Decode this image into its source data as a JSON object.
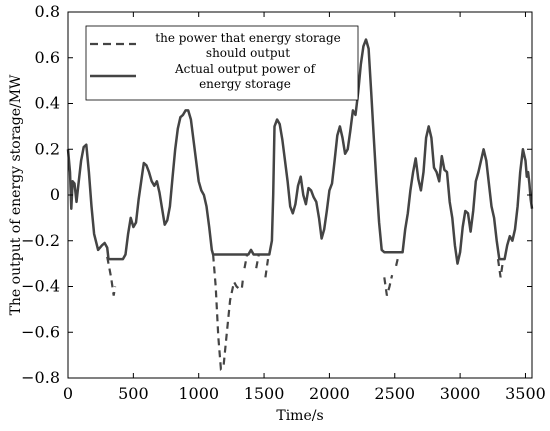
{
  "chart_data": {
    "type": "line",
    "xlabel": "Time/s",
    "ylabel": "The output of energy storage/MW",
    "xlim": [
      0,
      3550
    ],
    "ylim": [
      -0.8,
      0.8
    ],
    "xticks": [
      0,
      500,
      1000,
      1500,
      2000,
      2500,
      3000,
      3500
    ],
    "yticks": [
      0.8,
      0.6,
      0.4,
      0.2,
      0.0,
      -0.2,
      -0.4,
      -0.6,
      -0.8
    ],
    "yticklabels": [
      "0.8",
      "0.6",
      "0.4",
      "0.2",
      "0",
      "−0.2",
      "−0.4",
      "−0.6",
      "−0.8"
    ],
    "grid": false,
    "legend": "top-left",
    "series": [
      {
        "name": "the power that energy storage should output",
        "style": "dashed",
        "color": "#444444",
        "segments": [
          [
            [
              300,
              -0.27
            ],
            [
              330,
              -0.36
            ],
            [
              350,
              -0.44
            ],
            [
              360,
              -0.4
            ]
          ],
          [
            [
              1110,
              -0.26
            ],
            [
              1130,
              -0.4
            ],
            [
              1150,
              -0.62
            ],
            [
              1170,
              -0.76
            ],
            [
              1190,
              -0.75
            ],
            [
              1210,
              -0.63
            ],
            [
              1240,
              -0.46
            ],
            [
              1270,
              -0.38
            ],
            [
              1290,
              -0.4
            ],
            [
              1310,
              -0.41
            ],
            [
              1330,
              -0.41
            ],
            [
              1340,
              -0.36
            ]
          ],
          [
            [
              1350,
              -0.32
            ],
            [
              1370,
              -0.26
            ]
          ],
          [
            [
              1440,
              -0.32
            ],
            [
              1460,
              -0.26
            ]
          ],
          [
            [
              1510,
              -0.36
            ],
            [
              1530,
              -0.28
            ]
          ],
          [
            [
              2420,
              -0.36
            ],
            [
              2440,
              -0.44
            ],
            [
              2460,
              -0.4
            ],
            [
              2480,
              -0.35
            ]
          ],
          [
            [
              2510,
              -0.31
            ],
            [
              2530,
              -0.26
            ]
          ],
          [
            [
              3290,
              -0.28
            ],
            [
              3310,
              -0.36
            ],
            [
              3325,
              -0.3
            ]
          ]
        ]
      },
      {
        "name": "Actual output power of energy storage",
        "style": "solid",
        "color": "#444444",
        "points": [
          [
            0,
            0.2
          ],
          [
            15,
            0.1
          ],
          [
            25,
            -0.06
          ],
          [
            35,
            0.06
          ],
          [
            50,
            0.05
          ],
          [
            65,
            -0.03
          ],
          [
            80,
            0.05
          ],
          [
            100,
            0.15
          ],
          [
            120,
            0.21
          ],
          [
            140,
            0.22
          ],
          [
            160,
            0.1
          ],
          [
            180,
            -0.05
          ],
          [
            200,
            -0.17
          ],
          [
            230,
            -0.24
          ],
          [
            260,
            -0.22
          ],
          [
            280,
            -0.21
          ],
          [
            300,
            -0.23
          ],
          [
            310,
            -0.28
          ],
          [
            330,
            -0.28
          ],
          [
            360,
            -0.28
          ],
          [
            390,
            -0.28
          ],
          [
            420,
            -0.28
          ],
          [
            440,
            -0.26
          ],
          [
            460,
            -0.17
          ],
          [
            480,
            -0.1
          ],
          [
            500,
            -0.14
          ],
          [
            520,
            -0.12
          ],
          [
            540,
            -0.02
          ],
          [
            560,
            0.06
          ],
          [
            580,
            0.14
          ],
          [
            600,
            0.13
          ],
          [
            620,
            0.1
          ],
          [
            640,
            0.06
          ],
          [
            660,
            0.04
          ],
          [
            680,
            0.06
          ],
          [
            700,
            0.01
          ],
          [
            720,
            -0.06
          ],
          [
            740,
            -0.13
          ],
          [
            760,
            -0.11
          ],
          [
            780,
            -0.05
          ],
          [
            800,
            0.08
          ],
          [
            820,
            0.2
          ],
          [
            840,
            0.29
          ],
          [
            860,
            0.34
          ],
          [
            880,
            0.35
          ],
          [
            900,
            0.37
          ],
          [
            920,
            0.37
          ],
          [
            940,
            0.33
          ],
          [
            960,
            0.24
          ],
          [
            980,
            0.15
          ],
          [
            1000,
            0.06
          ],
          [
            1020,
            0.02
          ],
          [
            1040,
            0.0
          ],
          [
            1060,
            -0.05
          ],
          [
            1080,
            -0.14
          ],
          [
            1100,
            -0.24
          ],
          [
            1110,
            -0.26
          ],
          [
            1150,
            -0.26
          ],
          [
            1200,
            -0.26
          ],
          [
            1250,
            -0.26
          ],
          [
            1300,
            -0.26
          ],
          [
            1350,
            -0.26
          ],
          [
            1380,
            -0.26
          ],
          [
            1400,
            -0.24
          ],
          [
            1420,
            -0.26
          ],
          [
            1460,
            -0.26
          ],
          [
            1500,
            -0.26
          ],
          [
            1540,
            -0.26
          ],
          [
            1560,
            -0.2
          ],
          [
            1570,
            0.0
          ],
          [
            1580,
            0.3
          ],
          [
            1600,
            0.33
          ],
          [
            1620,
            0.31
          ],
          [
            1640,
            0.24
          ],
          [
            1660,
            0.15
          ],
          [
            1680,
            0.06
          ],
          [
            1700,
            -0.05
          ],
          [
            1720,
            -0.08
          ],
          [
            1740,
            -0.04
          ],
          [
            1760,
            0.04
          ],
          [
            1780,
            0.08
          ],
          [
            1800,
            0.0
          ],
          [
            1820,
            -0.04
          ],
          [
            1840,
            0.03
          ],
          [
            1860,
            0.02
          ],
          [
            1880,
            -0.01
          ],
          [
            1900,
            -0.03
          ],
          [
            1920,
            -0.1
          ],
          [
            1940,
            -0.19
          ],
          [
            1960,
            -0.15
          ],
          [
            1980,
            -0.07
          ],
          [
            2000,
            0.02
          ],
          [
            2020,
            0.05
          ],
          [
            2040,
            0.15
          ],
          [
            2060,
            0.26
          ],
          [
            2080,
            0.3
          ],
          [
            2100,
            0.25
          ],
          [
            2120,
            0.18
          ],
          [
            2140,
            0.2
          ],
          [
            2160,
            0.28
          ],
          [
            2180,
            0.37
          ],
          [
            2200,
            0.35
          ],
          [
            2220,
            0.45
          ],
          [
            2240,
            0.57
          ],
          [
            2260,
            0.65
          ],
          [
            2280,
            0.68
          ],
          [
            2300,
            0.64
          ],
          [
            2320,
            0.45
          ],
          [
            2340,
            0.25
          ],
          [
            2360,
            0.05
          ],
          [
            2380,
            -0.12
          ],
          [
            2400,
            -0.24
          ],
          [
            2420,
            -0.25
          ],
          [
            2480,
            -0.25
          ],
          [
            2520,
            -0.25
          ],
          [
            2560,
            -0.25
          ],
          [
            2580,
            -0.15
          ],
          [
            2600,
            -0.08
          ],
          [
            2620,
            0.02
          ],
          [
            2640,
            0.1
          ],
          [
            2660,
            0.16
          ],
          [
            2680,
            0.07
          ],
          [
            2700,
            0.02
          ],
          [
            2720,
            0.1
          ],
          [
            2740,
            0.25
          ],
          [
            2760,
            0.3
          ],
          [
            2780,
            0.25
          ],
          [
            2800,
            0.12
          ],
          [
            2820,
            0.1
          ],
          [
            2840,
            0.06
          ],
          [
            2860,
            0.17
          ],
          [
            2880,
            0.11
          ],
          [
            2900,
            0.1
          ],
          [
            2920,
            -0.03
          ],
          [
            2940,
            -0.1
          ],
          [
            2960,
            -0.22
          ],
          [
            2980,
            -0.3
          ],
          [
            3000,
            -0.25
          ],
          [
            3020,
            -0.14
          ],
          [
            3040,
            -0.07
          ],
          [
            3060,
            -0.08
          ],
          [
            3080,
            -0.16
          ],
          [
            3100,
            -0.07
          ],
          [
            3120,
            0.06
          ],
          [
            3140,
            0.1
          ],
          [
            3160,
            0.15
          ],
          [
            3180,
            0.2
          ],
          [
            3200,
            0.15
          ],
          [
            3220,
            0.05
          ],
          [
            3240,
            -0.05
          ],
          [
            3260,
            -0.1
          ],
          [
            3280,
            -0.2
          ],
          [
            3300,
            -0.28
          ],
          [
            3340,
            -0.28
          ],
          [
            3360,
            -0.22
          ],
          [
            3380,
            -0.18
          ],
          [
            3400,
            -0.2
          ],
          [
            3420,
            -0.15
          ],
          [
            3440,
            -0.05
          ],
          [
            3460,
            0.1
          ],
          [
            3480,
            0.2
          ],
          [
            3500,
            0.15
          ],
          [
            3510,
            0.08
          ],
          [
            3520,
            0.1
          ],
          [
            3530,
            0.05
          ],
          [
            3540,
            -0.02
          ],
          [
            3550,
            -0.06
          ]
        ]
      }
    ]
  }
}
